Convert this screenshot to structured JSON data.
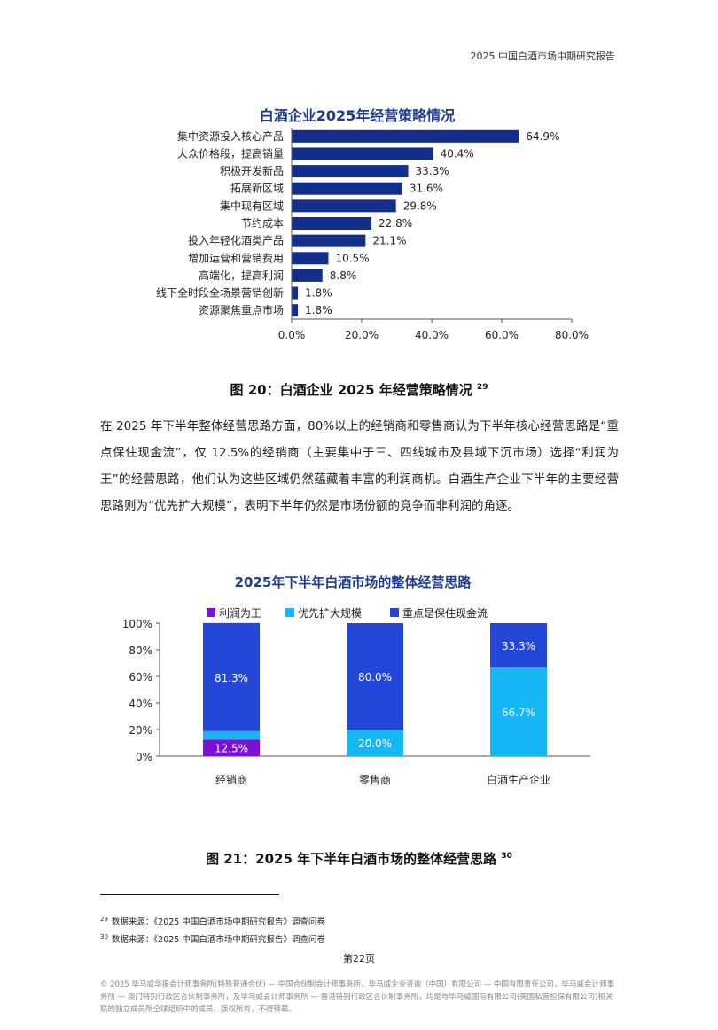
{
  "header": {
    "running_title": "2025 中国白酒市场中期研究报告"
  },
  "figure20": {
    "caption": "图 20：白酒企业 2025 年经营策略情况",
    "footnote_ref": "29"
  },
  "figure21": {
    "caption": "图 21：2025 年下半年白酒市场的整体经营思路",
    "footnote_ref": "30"
  },
  "paragraph": "在 2025 年下半年整体经营思路方面，80%以上的经销商和零售商认为下半年核心经营思路是“重点保住现金流”，仅 12.5%的经销商（主要集中于三、四线城市及县域下沉市场）选择“利润为王”的经营思路，他们认为这些区域仍然蕴藏着丰富的利润商机。白酒生产企业下半年的主要经营思路则为“优先扩大规模”，表明下半年仍然是市场份额的竞争而非利润的角逐。",
  "footnotes": [
    {
      "num": "29",
      "text": "数据来源：《2025 中国白酒市场中期研究报告》调查问卷"
    },
    {
      "num": "30",
      "text": "数据来源：《2025 中国白酒市场中期研究报告》调查问卷"
    }
  ],
  "page_number": "第22页",
  "copyright": "© 2025 毕马威华振会计师事务所(特殊普通合伙) — 中国合伙制会计师事务所，毕马威企业咨询（中国）有限公司 — 中国有限责任公司，毕马威会计师事务所 — 澳门特别行政区合伙制事务所，及毕马威会计师事务所 — 香港特别行政区合伙制事务所，均是与毕马威国际有限公司(英国私营担保有限公司)相关联的独立成员所全球组织中的成员。版权所有，不得转载。",
  "colors": {
    "bar": "#132f8c",
    "title": "#1f3b8f",
    "profit_first": "#7b10d6",
    "scale_first": "#17b6f5",
    "cash_flow": "#2347d9"
  },
  "chart_data": [
    {
      "type": "bar",
      "orientation": "horizontal",
      "title": "白酒企业2025年经营策略情况",
      "categories": [
        "集中资源投入核心产品",
        "大众价格段，提高销量",
        "积极开发新品",
        "拓展新区域",
        "集中现有区域",
        "节约成本",
        "投入年轻化酒类产品",
        "增加运营和营销费用",
        "高端化，提高利润",
        "线下全时段全场景营销创新",
        "资源聚焦重点市场"
      ],
      "values": [
        64.9,
        40.4,
        33.3,
        31.6,
        29.8,
        22.8,
        21.1,
        10.5,
        8.8,
        1.8,
        1.8
      ],
      "value_labels": [
        "64.9%",
        "40.4%",
        "33.3%",
        "31.6%",
        "29.8%",
        "22.8%",
        "21.1%",
        "10.5%",
        "8.8%",
        "1.8%",
        "1.8%"
      ],
      "xlim": [
        0,
        80
      ],
      "x_ticks": [
        "0.0%",
        "20.0%",
        "40.0%",
        "60.0%",
        "80.0%"
      ],
      "grid": false
    },
    {
      "type": "bar",
      "stacked": true,
      "title": "2025年下半年白酒市场的整体经营思路",
      "categories": [
        "经销商",
        "零售商",
        "白酒生产企业"
      ],
      "series": [
        {
          "name": "利润为王",
          "values": [
            12.5,
            0,
            0
          ],
          "labels": [
            "12.5%",
            "",
            ""
          ]
        },
        {
          "name": "优先扩大规模",
          "values": [
            6.3,
            20.0,
            66.7
          ],
          "labels": [
            "6.3%",
            "20.0%",
            "66.7%"
          ]
        },
        {
          "name": "重点是保住现金流",
          "values": [
            81.3,
            80.0,
            33.3
          ],
          "labels": [
            "81.3%",
            "80.0%",
            "33.3%"
          ]
        }
      ],
      "ylim": [
        0,
        100
      ],
      "y_ticks": [
        "0%",
        "20%",
        "40%",
        "60%",
        "80%",
        "100%"
      ],
      "legend_position": "top",
      "grid": false
    }
  ]
}
